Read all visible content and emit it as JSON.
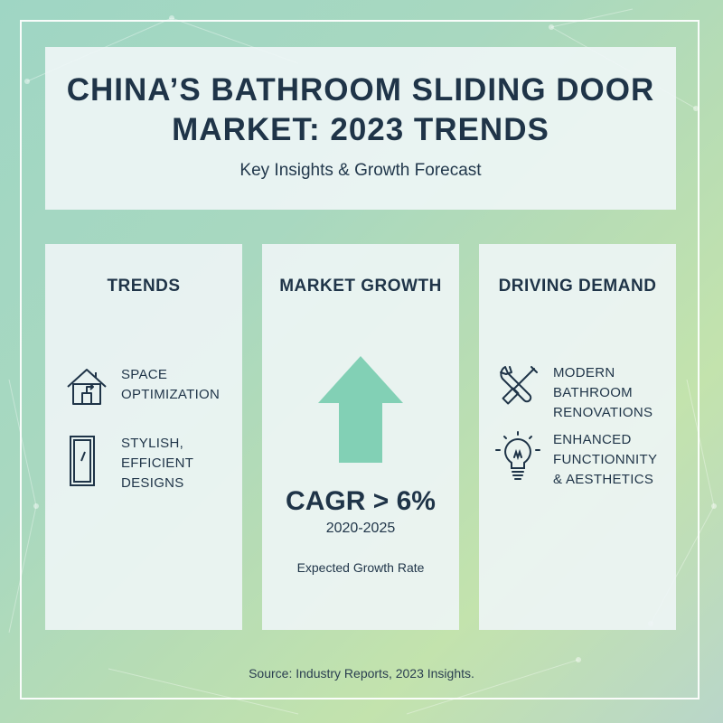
{
  "header": {
    "title_line1": "China’s Bathroom Sliding Door",
    "title_line2": "Market: 2023 Trends",
    "subtitle": "Key Insights & Growth Forecast"
  },
  "cards": {
    "trends": {
      "title": "TRENDS",
      "items": [
        {
          "icon": "house-icon",
          "line1": "Space",
          "line2": "Optimization",
          "line3": ""
        },
        {
          "icon": "sliding-door-icon",
          "line1": "Stylish,",
          "line2": "Efficient",
          "line3": "Designs"
        }
      ]
    },
    "growth": {
      "title": "MARKET GROWTH",
      "icon": "up-arrow-icon",
      "cagr": "CAGR > 6%",
      "years": "2020-2025",
      "label": "Expected Growth Rate"
    },
    "demand": {
      "title": "DRIVING DEMAND",
      "items": [
        {
          "icon": "tools-icon",
          "line1": "Modern Bathroom",
          "line2": "Renovations",
          "line3": ""
        },
        {
          "icon": "lightbulb-icon",
          "line1": "Enhanced",
          "line2": "Functionnity",
          "line3": "& Aesthetics"
        }
      ]
    }
  },
  "colors": {
    "text": "#1f3448",
    "arrow": "#82d0b5",
    "panel": "#eef5f6"
  },
  "source": "Source: Industry Reports, 2023 Insights."
}
